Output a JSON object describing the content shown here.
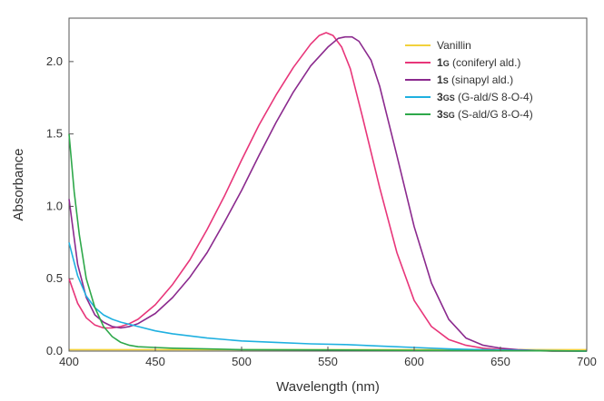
{
  "chart_data": {
    "type": "line",
    "xlabel": "Wavelength (nm)",
    "ylabel": "Absorbance",
    "xlim": [
      400,
      700
    ],
    "ylim": [
      0,
      2.3
    ],
    "xticks": [
      400,
      450,
      500,
      550,
      600,
      650,
      700
    ],
    "xtick_labels": [
      "400",
      "450",
      "500",
      "550",
      "600",
      "650",
      "700"
    ],
    "yticks": [
      0,
      0.5,
      1.0,
      1.5,
      2.0
    ],
    "ytick_labels": [
      "0.0",
      "0.5",
      "1.0",
      "1.5",
      "2.0"
    ],
    "grid": false,
    "legend_position": "top-right",
    "series": [
      {
        "name": "Vanillin",
        "legend_main": "Vanillin",
        "legend_sub": "",
        "legend_rest": "",
        "color": "#f2d13c",
        "x": [
          400,
          500,
          600,
          700
        ],
        "y": [
          0.01,
          0.01,
          0.01,
          0.01
        ]
      },
      {
        "name": "1G (coniferyl ald.)",
        "legend_main": "1",
        "legend_sub": "G",
        "legend_rest": " (coniferyl ald.)",
        "color": "#e8367a",
        "x": [
          400,
          405,
          410,
          415,
          420,
          425,
          430,
          435,
          440,
          450,
          460,
          470,
          480,
          490,
          500,
          510,
          520,
          530,
          540,
          545,
          549,
          553,
          558,
          563,
          570,
          580,
          590,
          600,
          610,
          620,
          630,
          640,
          650,
          660,
          680,
          700
        ],
        "y": [
          0.5,
          0.33,
          0.23,
          0.18,
          0.16,
          0.16,
          0.17,
          0.19,
          0.22,
          0.32,
          0.46,
          0.63,
          0.84,
          1.07,
          1.32,
          1.56,
          1.77,
          1.96,
          2.12,
          2.18,
          2.2,
          2.18,
          2.1,
          1.95,
          1.62,
          1.13,
          0.68,
          0.35,
          0.17,
          0.08,
          0.04,
          0.02,
          0.01,
          0.005,
          0.0,
          0.0
        ]
      },
      {
        "name": "1S (sinapyl ald.)",
        "legend_main": "1",
        "legend_sub": "S",
        "legend_rest": " (sinapyl ald.)",
        "color": "#8b2a8e",
        "x": [
          400,
          405,
          410,
          415,
          420,
          425,
          430,
          435,
          440,
          450,
          460,
          470,
          480,
          490,
          500,
          510,
          520,
          530,
          540,
          550,
          556,
          560,
          564,
          568,
          575,
          580,
          590,
          600,
          610,
          620,
          630,
          640,
          650,
          660,
          680,
          700
        ],
        "y": [
          1.05,
          0.6,
          0.37,
          0.25,
          0.2,
          0.17,
          0.16,
          0.17,
          0.19,
          0.26,
          0.37,
          0.51,
          0.68,
          0.89,
          1.11,
          1.35,
          1.58,
          1.79,
          1.97,
          2.1,
          2.16,
          2.17,
          2.17,
          2.14,
          2.01,
          1.83,
          1.35,
          0.86,
          0.47,
          0.22,
          0.09,
          0.04,
          0.02,
          0.01,
          0.0,
          0.0
        ]
      },
      {
        "name": "3GS (G-ald/S 8-O-4)",
        "legend_main": "3",
        "legend_sub": "GS",
        "legend_rest": " (G-ald/S 8-O-4)",
        "color": "#1fb0e0",
        "x": [
          400,
          405,
          410,
          415,
          420,
          425,
          430,
          440,
          450,
          460,
          480,
          500,
          520,
          540,
          560,
          580,
          600,
          620,
          640,
          660,
          680,
          700
        ],
        "y": [
          0.75,
          0.52,
          0.38,
          0.3,
          0.25,
          0.22,
          0.2,
          0.17,
          0.14,
          0.12,
          0.09,
          0.07,
          0.06,
          0.05,
          0.045,
          0.035,
          0.025,
          0.015,
          0.01,
          0.005,
          0.003,
          0.0
        ]
      },
      {
        "name": "3SG (S-ald/G 8-O-4)",
        "legend_main": "3",
        "legend_sub": "SG",
        "legend_rest": " (S-ald/G 8-O-4)",
        "color": "#2ea84a",
        "x": [
          400,
          403,
          406,
          410,
          415,
          420,
          425,
          430,
          435,
          440,
          450,
          460,
          480,
          500,
          550,
          600,
          650,
          700
        ],
        "y": [
          1.5,
          1.1,
          0.8,
          0.5,
          0.3,
          0.17,
          0.1,
          0.06,
          0.04,
          0.03,
          0.025,
          0.02,
          0.015,
          0.01,
          0.008,
          0.005,
          0.003,
          0.0
        ]
      }
    ]
  }
}
